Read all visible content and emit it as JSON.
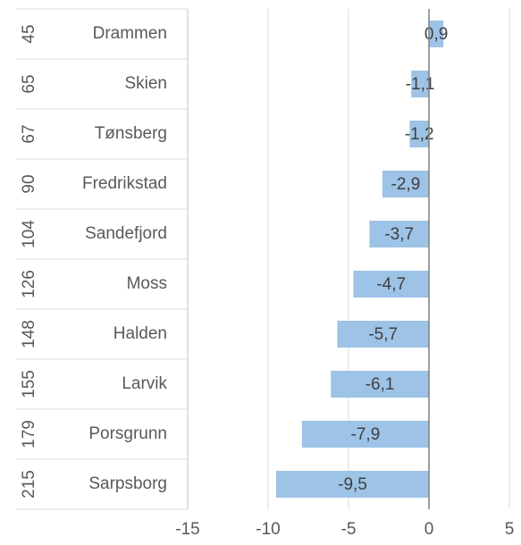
{
  "chart_data": {
    "type": "bar",
    "orientation": "horizontal",
    "groups": [
      45,
      65,
      67,
      90,
      104,
      126,
      148,
      155,
      179,
      215
    ],
    "categories": [
      "Drammen",
      "Skien",
      "Tønsberg",
      "Fredrikstad",
      "Sandefjord",
      "Moss",
      "Halden",
      "Larvik",
      "Porsgrunn",
      "Sarpsborg"
    ],
    "values": [
      0.9,
      -1.1,
      -1.2,
      -2.9,
      -3.7,
      -4.7,
      -5.7,
      -6.1,
      -7.9,
      -9.5
    ],
    "value_labels": [
      "0,9",
      "-1,1",
      "-1,2",
      "-2,9",
      "-3,7",
      "-4,7",
      "-5,7",
      "-6,1",
      "-7,9",
      "-9,5"
    ],
    "color": "#9dc3e6",
    "xlim": [
      -15,
      5
    ],
    "xticks": [
      -15,
      -10,
      -5,
      0,
      5
    ],
    "grid": true
  }
}
